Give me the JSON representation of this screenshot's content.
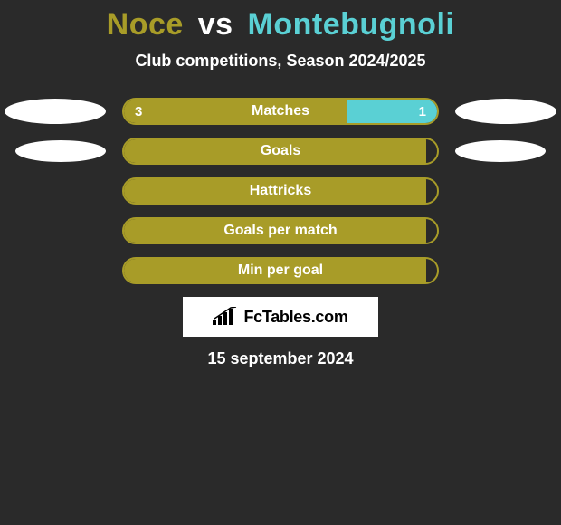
{
  "title": {
    "player1": "Noce",
    "vs": "vs",
    "player2": "Montebugnoli",
    "player1_color": "#a89c28",
    "player2_color": "#5ad0d4"
  },
  "subtitle": "Club competitions, Season 2024/2025",
  "bars": {
    "border_color_left": "#a89c28",
    "border_color_right": "#5ad0d4",
    "fill_left": "#a89c28",
    "fill_right": "#5ad0d4",
    "rows": [
      {
        "label": "Matches",
        "left_value": "3",
        "right_value": "1",
        "left_pct": 0.71,
        "right_pct": 0.29,
        "show_ovals": true,
        "oval_small": false
      },
      {
        "label": "Goals",
        "left_value": "",
        "right_value": "",
        "left_pct": 1.0,
        "right_pct": 0.0,
        "show_ovals": true,
        "oval_small": true
      },
      {
        "label": "Hattricks",
        "left_value": "",
        "right_value": "",
        "left_pct": 1.0,
        "right_pct": 0.0,
        "show_ovals": false,
        "oval_small": false
      },
      {
        "label": "Goals per match",
        "left_value": "",
        "right_value": "",
        "left_pct": 1.0,
        "right_pct": 0.0,
        "show_ovals": false,
        "oval_small": false
      },
      {
        "label": "Min per goal",
        "left_value": "",
        "right_value": "",
        "left_pct": 1.0,
        "right_pct": 0.0,
        "show_ovals": false,
        "oval_small": false
      }
    ]
  },
  "logo": {
    "text": "FcTables.com",
    "icon_name": "bars-chart-icon",
    "background": "#ffffff",
    "text_color": "#000000"
  },
  "date": "15 september 2024",
  "background_color": "#2a2a2a"
}
